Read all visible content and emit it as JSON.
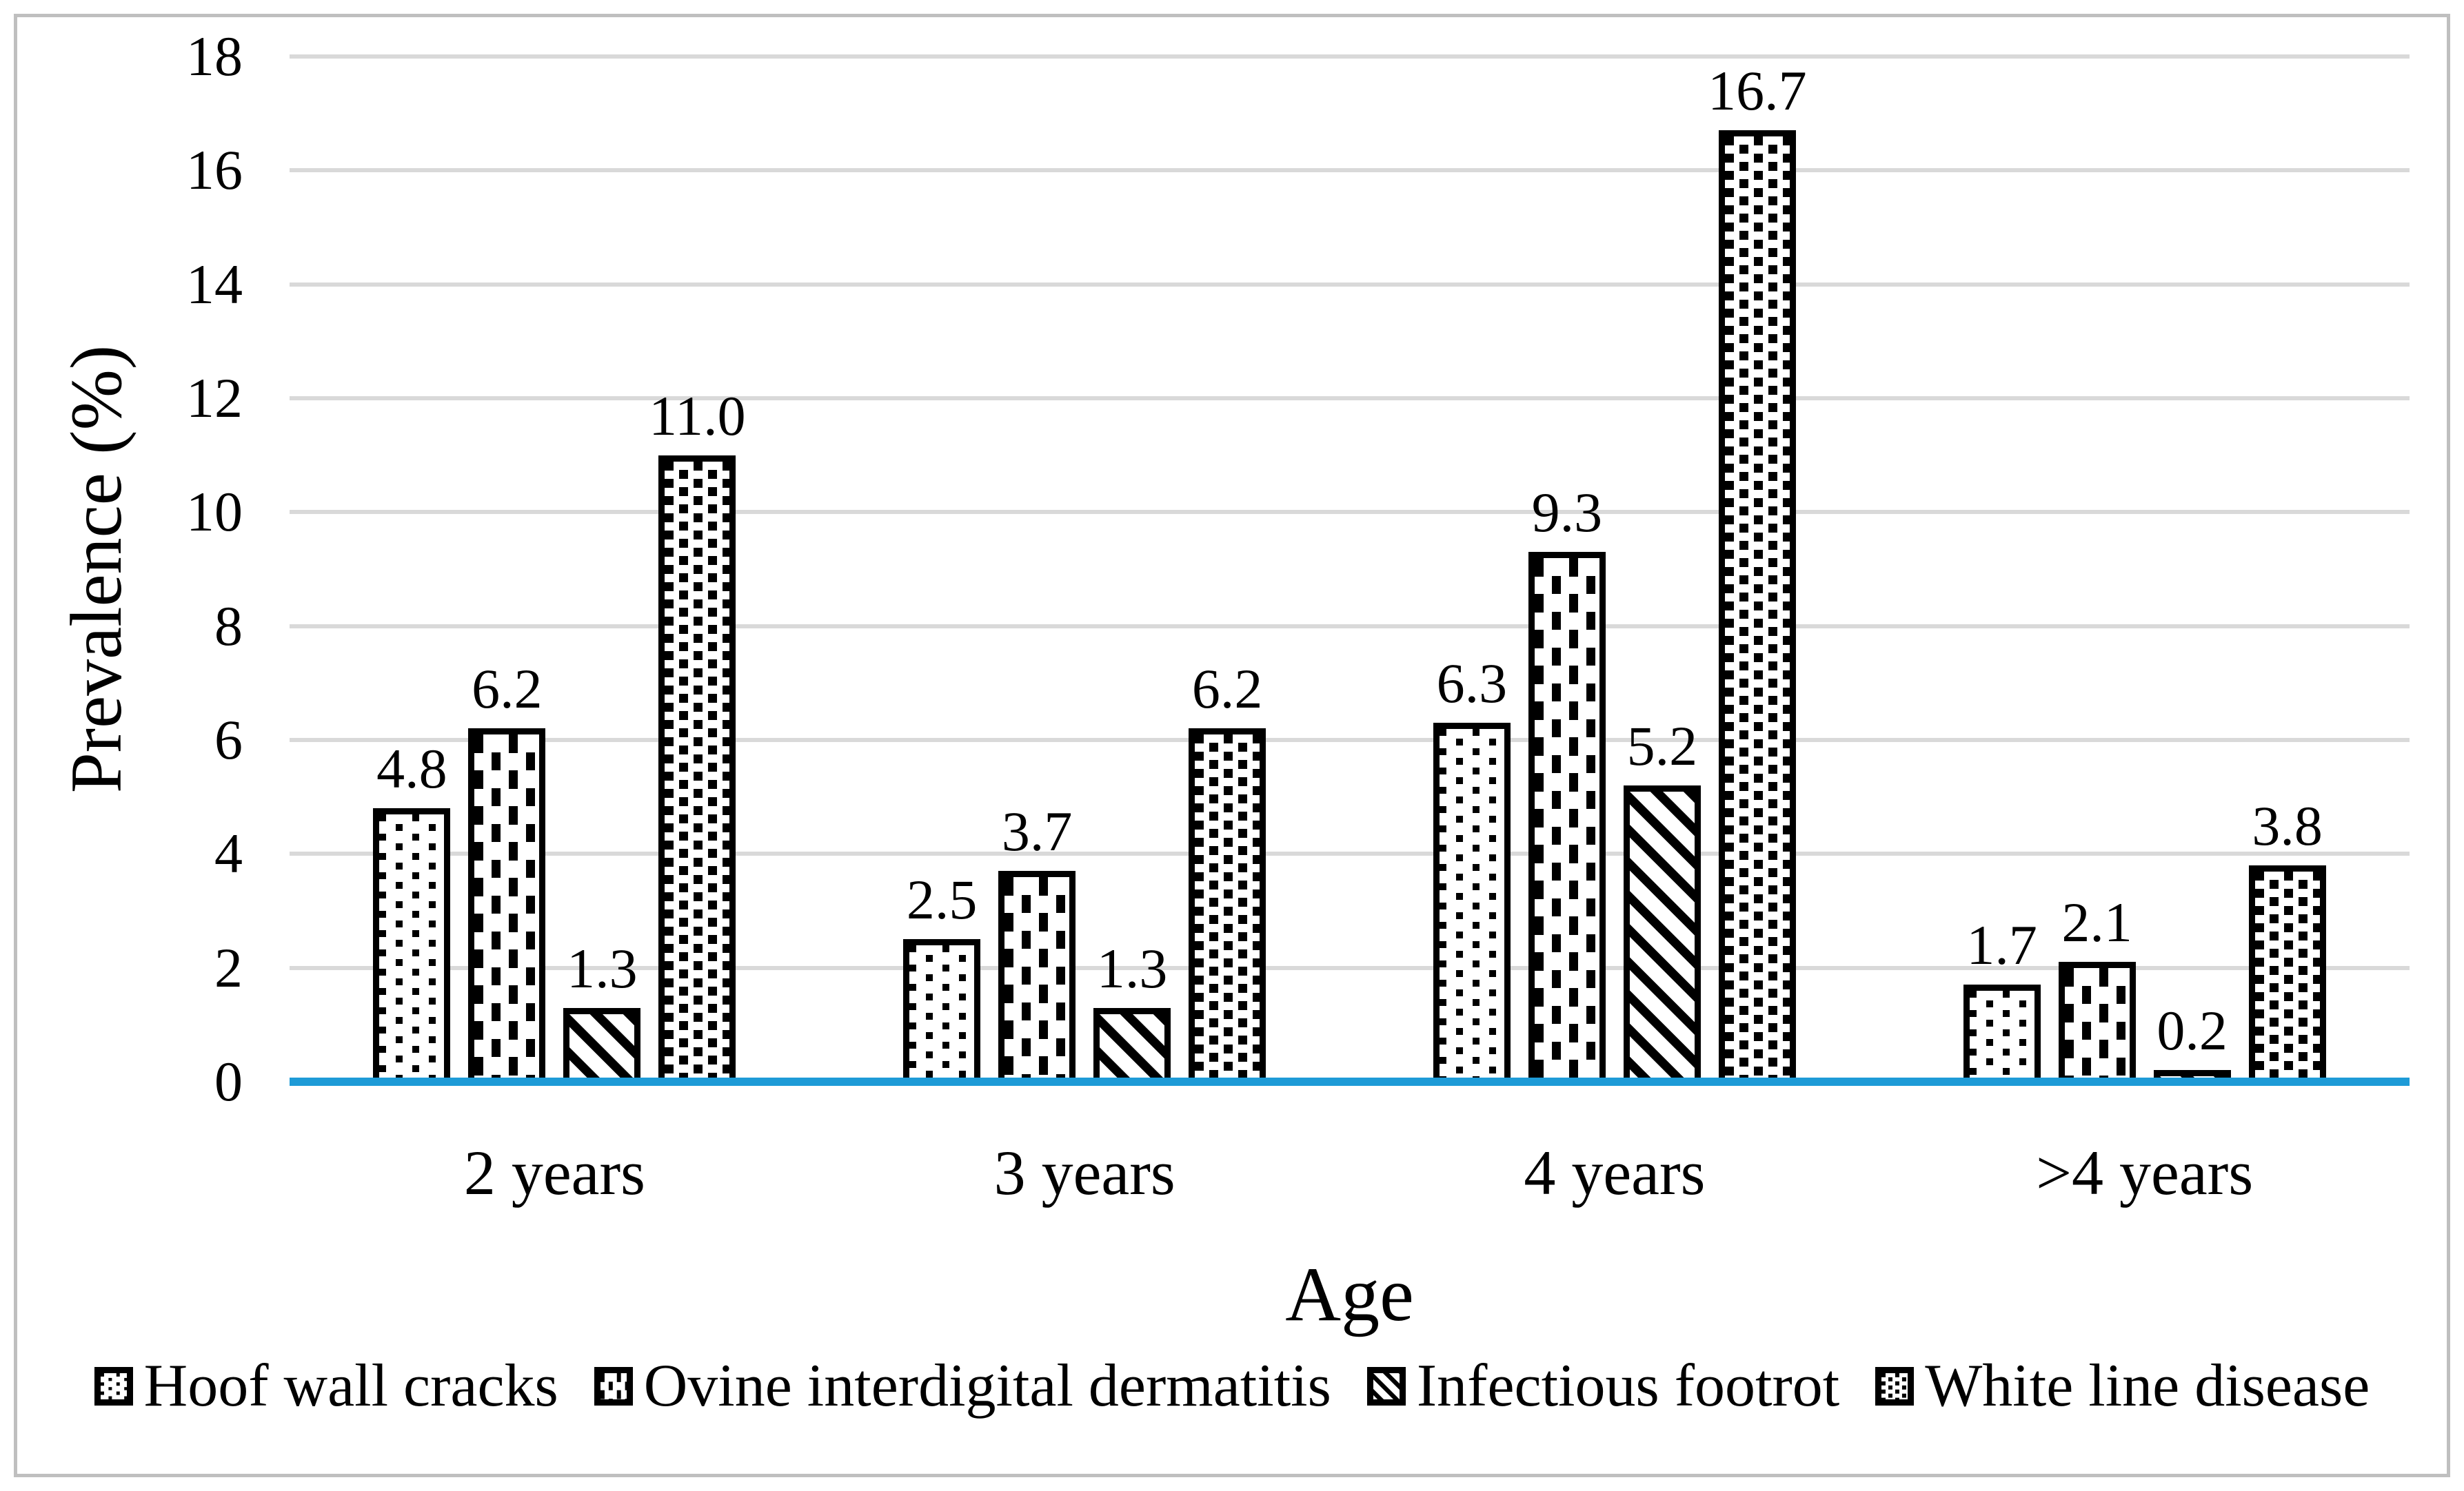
{
  "chart_data": {
    "type": "bar",
    "title": "",
    "xlabel": "Age",
    "ylabel": "Prevalence (%)",
    "categories": [
      "2 years",
      "3 years",
      "4 years",
      ">4 years"
    ],
    "series": [
      {
        "name": "Hoof wall cracks",
        "pattern": "sparse-dots",
        "values": [
          4.8,
          2.5,
          6.3,
          1.7
        ],
        "labels": [
          "4.8",
          "2.5",
          "6.3",
          "1.7"
        ]
      },
      {
        "name": "Ovine interdigital dermatitis",
        "pattern": "vertical-dashes",
        "values": [
          6.2,
          3.7,
          9.3,
          2.1
        ],
        "labels": [
          "6.2",
          "3.7",
          "9.3",
          "2.1"
        ]
      },
      {
        "name": "Infectious footrot",
        "pattern": "diagonal-stripes",
        "values": [
          1.3,
          1.3,
          5.2,
          0.2
        ],
        "labels": [
          "1.3",
          "1.3",
          "5.2",
          "0.2"
        ]
      },
      {
        "name": "White line disease",
        "pattern": "dense-dots",
        "values": [
          11.0,
          6.2,
          16.7,
          3.8
        ],
        "labels": [
          "11.0",
          "6.2",
          "16.7",
          "3.8"
        ]
      }
    ],
    "ylim": [
      0,
      18
    ],
    "yticks": [
      0,
      2,
      4,
      6,
      8,
      10,
      12,
      14,
      16,
      18
    ],
    "grid": "horizontal",
    "legend_position": "bottom",
    "bar_style": "black-and-white hatch patterns with black outlines",
    "colors": {
      "text": "#000000",
      "bar_outline": "#000000",
      "gridline": "#D9D9D9",
      "axis_baseline": "#1E9BD7",
      "figure_border": "#BFBFBF",
      "background": "#FFFFFF"
    }
  }
}
